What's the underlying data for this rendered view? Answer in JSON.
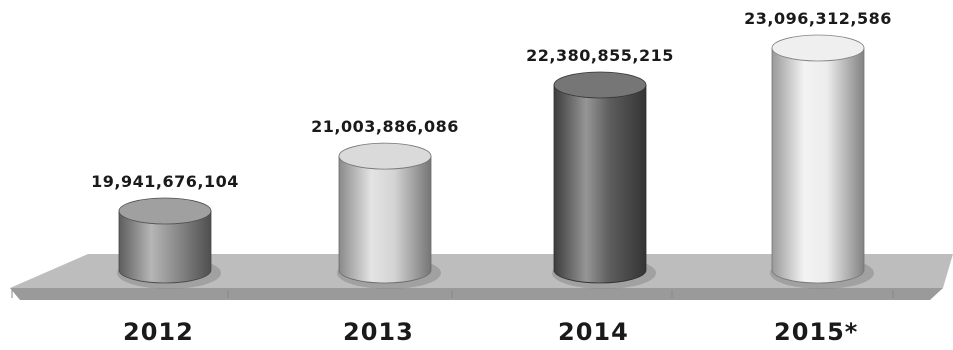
{
  "chart_data": {
    "type": "bar",
    "style": "3d-cylinder",
    "categories": [
      "2012",
      "2013",
      "2014",
      "2015*"
    ],
    "values": [
      19941676104,
      21003886086,
      22380855215,
      23096312586
    ],
    "data_labels": [
      "19,941,676,104",
      "21,003,886,086",
      "22,380,855,215",
      "23,096,312,586"
    ],
    "title": "",
    "xlabel": "",
    "ylabel": "",
    "grid": false,
    "legend": "none"
  },
  "colors": {
    "bar_fills": [
      "#8f8f8f",
      "#d4d4d4",
      "#5e5e5e",
      "#ececec"
    ],
    "floor": "#bdbdbd",
    "text": "#1a1a1a"
  }
}
